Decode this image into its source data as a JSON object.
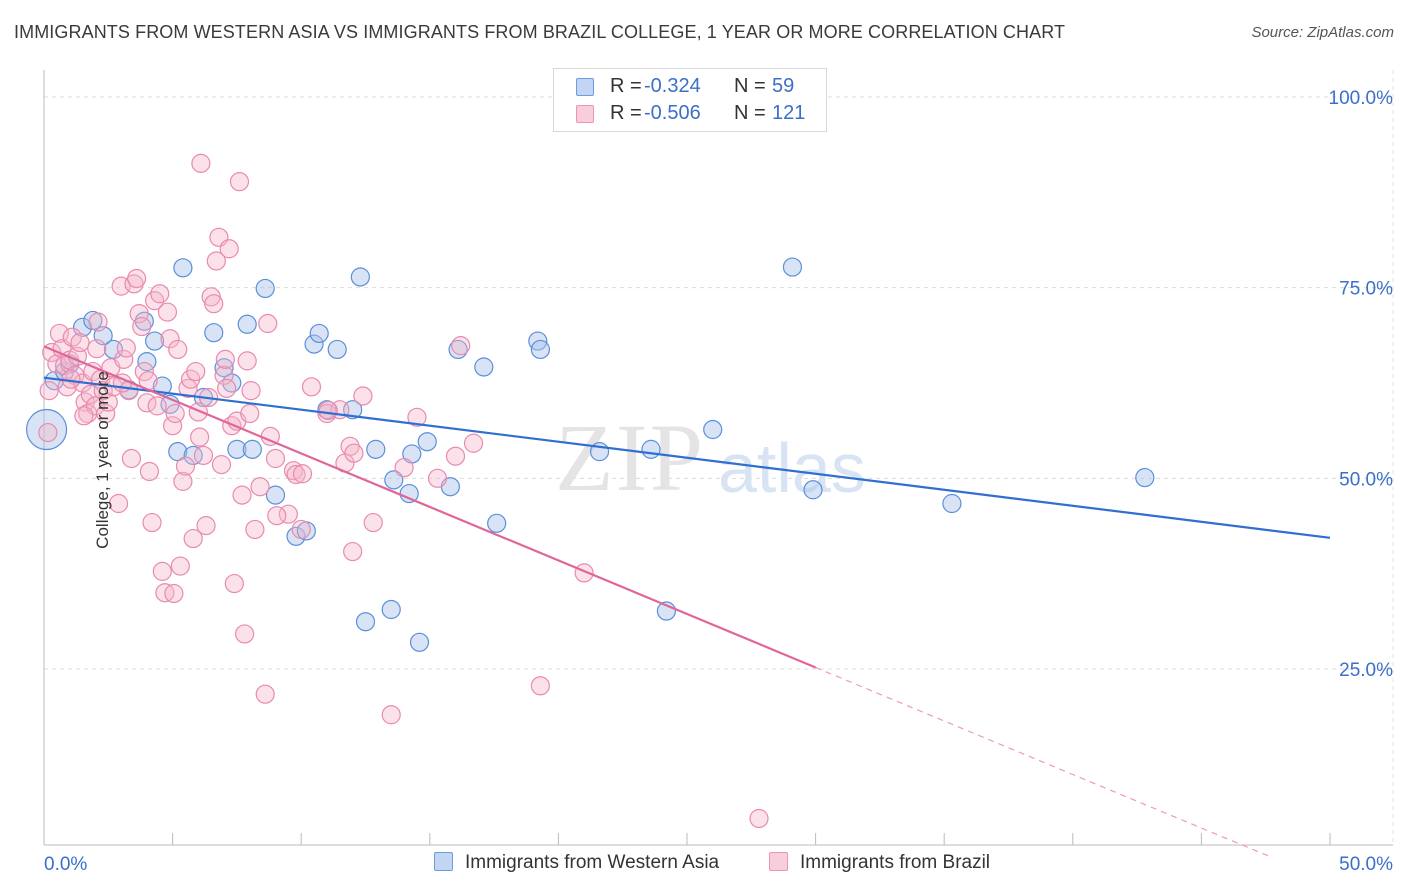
{
  "header": {
    "title": "IMMIGRANTS FROM WESTERN ASIA VS IMMIGRANTS FROM BRAZIL COLLEGE, 1 YEAR OR MORE CORRELATION CHART",
    "source": "Source: ZipAtlas.com"
  },
  "watermark": {
    "zip": "ZIP",
    "atlas": "atlas"
  },
  "legend": {
    "rows": [
      {
        "r_label": "R =",
        "r_value": "-0.324",
        "n_label": "N =",
        "n_value": "59"
      },
      {
        "r_label": "R =",
        "r_value": "-0.506",
        "n_label": "N =",
        "n_value": "121"
      }
    ]
  },
  "colors": {
    "blue": "#3b6fc9",
    "blue_fill": "#a9c4ec",
    "pink": "#e46f9a",
    "pink_fill": "#f4b6cb",
    "grid": "#d9d9d9",
    "tick_label": "#3b6fc9"
  },
  "chart_data": {
    "type": "scatter",
    "title": "IMMIGRANTS FROM WESTERN ASIA VS IMMIGRANTS FROM BRAZIL COLLEGE, 1 YEAR OR MORE CORRELATION CHART",
    "xlabel": "",
    "ylabel": "College, 1 year or more",
    "xlim": [
      0,
      50
    ],
    "ylim": [
      0,
      105
    ],
    "x_tick_labels": [
      "0.0%",
      "50.0%"
    ],
    "y_tick_labels": [
      "100.0%",
      "75.0%",
      "50.0%",
      "25.0%"
    ],
    "y_ticks": [
      100,
      75,
      50,
      25
    ],
    "grid": true,
    "legend_position": "bottom",
    "series": [
      {
        "name": "Immigrants from Western Asia",
        "color": "#3b6fc9",
        "trend": {
          "x": [
            0,
            50
          ],
          "y": [
            63.2,
            42.2
          ]
        },
        "points": [
          [
            0.1,
            56.4
          ],
          [
            0.4,
            62.8
          ],
          [
            0.8,
            64.0
          ],
          [
            1.0,
            65.0
          ],
          [
            1.5,
            69.8
          ],
          [
            1.9,
            70.7
          ],
          [
            2.3,
            68.7
          ],
          [
            2.7,
            66.9
          ],
          [
            3.3,
            61.6
          ],
          [
            3.9,
            70.6
          ],
          [
            4.0,
            65.3
          ],
          [
            4.3,
            68.0
          ],
          [
            4.6,
            62.1
          ],
          [
            4.9,
            59.7
          ],
          [
            5.2,
            53.5
          ],
          [
            5.4,
            77.6
          ],
          [
            5.8,
            53.0
          ],
          [
            6.2,
            60.6
          ],
          [
            6.6,
            69.1
          ],
          [
            7.0,
            64.5
          ],
          [
            7.3,
            62.5
          ],
          [
            7.5,
            53.8
          ],
          [
            7.9,
            70.2
          ],
          [
            8.1,
            53.8
          ],
          [
            8.6,
            74.9
          ],
          [
            9.0,
            47.8
          ],
          [
            9.8,
            42.4
          ],
          [
            10.2,
            43.1
          ],
          [
            10.5,
            67.6
          ],
          [
            10.7,
            69.0
          ],
          [
            11.4,
            66.9
          ],
          [
            11.0,
            59.0
          ],
          [
            12.0,
            59.0
          ],
          [
            12.3,
            76.4
          ],
          [
            12.5,
            31.2
          ],
          [
            12.9,
            53.8
          ],
          [
            13.5,
            32.8
          ],
          [
            13.6,
            49.8
          ],
          [
            14.2,
            48.0
          ],
          [
            14.3,
            53.2
          ],
          [
            14.6,
            28.5
          ],
          [
            14.9,
            54.8
          ],
          [
            15.8,
            48.9
          ],
          [
            16.1,
            66.9
          ],
          [
            17.1,
            64.6
          ],
          [
            17.6,
            44.1
          ],
          [
            19.2,
            68.0
          ],
          [
            19.3,
            66.9
          ],
          [
            21.6,
            53.5
          ],
          [
            23.6,
            53.8
          ],
          [
            24.2,
            32.6
          ],
          [
            26.0,
            56.4
          ],
          [
            29.1,
            77.7
          ],
          [
            29.9,
            48.5
          ],
          [
            35.3,
            46.7
          ],
          [
            42.8,
            50.1
          ]
        ]
      },
      {
        "name": "Immigrants from Brazil",
        "color": "#e46f9a",
        "trend": {
          "x": [
            0,
            30
          ],
          "y": [
            67.3,
            25.2
          ]
        },
        "trend_dashed": {
          "x": [
            30,
            47.6
          ],
          "y": [
            25.2,
            0.5
          ]
        },
        "points": [
          [
            0.2,
            61.5
          ],
          [
            0.3,
            66.5
          ],
          [
            0.5,
            65.0
          ],
          [
            0.6,
            69.0
          ],
          [
            0.7,
            67.0
          ],
          [
            0.8,
            64.8
          ],
          [
            0.9,
            62.0
          ],
          [
            1.0,
            65.5
          ],
          [
            1.1,
            68.5
          ],
          [
            1.2,
            63.5
          ],
          [
            1.3,
            66.0
          ],
          [
            1.4,
            67.8
          ],
          [
            1.5,
            62.5
          ],
          [
            1.6,
            60.0
          ],
          [
            1.7,
            58.5
          ],
          [
            1.8,
            61.0
          ],
          [
            1.9,
            64.0
          ],
          [
            2.0,
            59.5
          ],
          [
            2.1,
            70.5
          ],
          [
            2.2,
            63.0
          ],
          [
            2.3,
            61.5
          ],
          [
            2.4,
            58.5
          ],
          [
            2.5,
            60.0
          ],
          [
            2.6,
            64.5
          ],
          [
            2.7,
            62.0
          ],
          [
            2.9,
            46.7
          ],
          [
            3.0,
            75.2
          ],
          [
            3.1,
            65.6
          ],
          [
            3.2,
            67.1
          ],
          [
            3.3,
            61.5
          ],
          [
            3.4,
            52.6
          ],
          [
            3.5,
            75.5
          ],
          [
            3.6,
            76.2
          ],
          [
            3.7,
            71.6
          ],
          [
            3.8,
            69.9
          ],
          [
            3.9,
            64.0
          ],
          [
            4.0,
            59.9
          ],
          [
            4.1,
            50.9
          ],
          [
            4.2,
            44.2
          ],
          [
            4.3,
            73.3
          ],
          [
            4.4,
            59.5
          ],
          [
            4.5,
            74.2
          ],
          [
            4.6,
            37.8
          ],
          [
            4.7,
            35.0
          ],
          [
            4.8,
            71.8
          ],
          [
            4.9,
            68.3
          ],
          [
            5.0,
            56.9
          ],
          [
            5.1,
            58.5
          ],
          [
            5.2,
            66.9
          ],
          [
            5.3,
            38.5
          ],
          [
            5.4,
            49.6
          ],
          [
            5.5,
            51.6
          ],
          [
            5.6,
            61.8
          ],
          [
            5.7,
            63.0
          ],
          [
            5.8,
            42.1
          ],
          [
            5.9,
            64.0
          ],
          [
            6.0,
            58.7
          ],
          [
            6.1,
            91.3
          ],
          [
            6.2,
            53.0
          ],
          [
            6.3,
            43.8
          ],
          [
            6.4,
            60.6
          ],
          [
            6.5,
            73.8
          ],
          [
            6.6,
            72.9
          ],
          [
            6.7,
            78.5
          ],
          [
            6.8,
            81.6
          ],
          [
            6.9,
            51.8
          ],
          [
            7.0,
            63.5
          ],
          [
            7.1,
            61.8
          ],
          [
            7.2,
            80.1
          ],
          [
            7.3,
            56.9
          ],
          [
            7.4,
            36.2
          ],
          [
            7.5,
            57.5
          ],
          [
            7.6,
            88.9
          ],
          [
            7.7,
            47.8
          ],
          [
            7.8,
            29.6
          ],
          [
            7.9,
            65.4
          ],
          [
            8.0,
            58.5
          ],
          [
            8.2,
            43.3
          ],
          [
            8.4,
            48.9
          ],
          [
            8.6,
            21.7
          ],
          [
            8.7,
            70.3
          ],
          [
            8.8,
            55.5
          ],
          [
            9.0,
            52.6
          ],
          [
            9.5,
            45.3
          ],
          [
            9.7,
            51.0
          ],
          [
            9.8,
            50.5
          ],
          [
            10.0,
            43.3
          ],
          [
            10.4,
            62.0
          ],
          [
            11.0,
            58.5
          ],
          [
            11.5,
            59.0
          ],
          [
            11.7,
            52.0
          ],
          [
            11.9,
            54.2
          ],
          [
            12.0,
            40.4
          ],
          [
            12.4,
            60.8
          ],
          [
            12.8,
            44.2
          ],
          [
            13.5,
            19.0
          ],
          [
            14.0,
            51.4
          ],
          [
            14.5,
            58.0
          ],
          [
            15.3,
            50.0
          ],
          [
            16.0,
            52.9
          ],
          [
            16.2,
            67.4
          ],
          [
            16.7,
            54.6
          ],
          [
            19.3,
            22.8
          ],
          [
            21.0,
            37.6
          ],
          [
            27.8,
            5.4
          ],
          [
            0.15,
            56.0
          ],
          [
            1.05,
            63.0
          ],
          [
            2.05,
            67.0
          ],
          [
            3.05,
            62.5
          ],
          [
            4.05,
            62.8
          ],
          [
            5.05,
            34.9
          ],
          [
            6.05,
            55.4
          ],
          [
            7.05,
            65.6
          ],
          [
            8.05,
            61.5
          ],
          [
            9.05,
            45.1
          ],
          [
            10.05,
            50.6
          ],
          [
            11.05,
            58.9
          ],
          [
            12.05,
            53.3
          ],
          [
            1.55,
            58.2
          ]
        ]
      }
    ]
  }
}
